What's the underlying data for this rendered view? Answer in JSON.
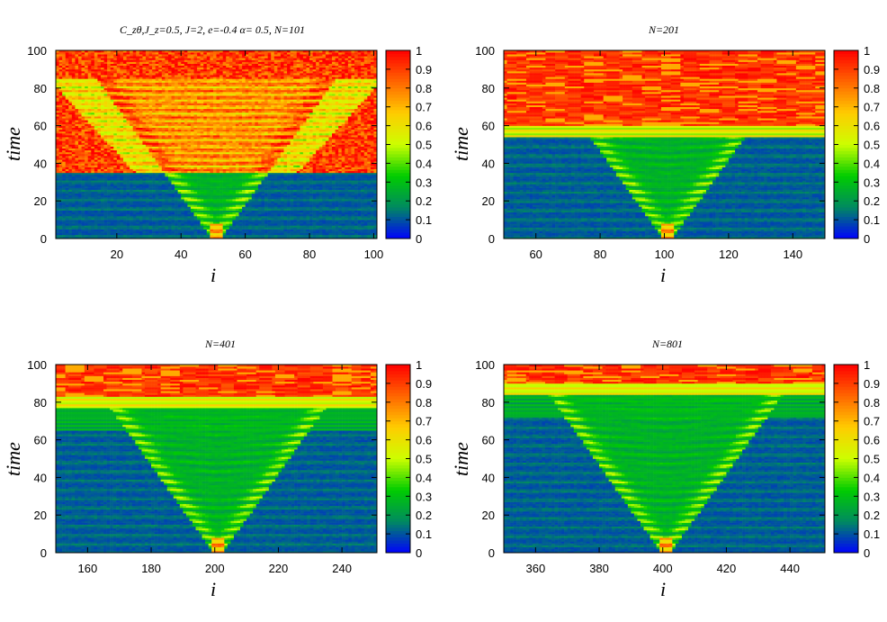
{
  "figure": {
    "colorbar_ticks": [
      "1",
      "0.9",
      "0.8",
      "0.7",
      "0.6",
      "0.5",
      "0.4",
      "0.3",
      "0.2",
      "0.1",
      "0"
    ],
    "colormap": [
      "#0000ff",
      "#008a60",
      "#00cc00",
      "#ccff00",
      "#ffcc00",
      "#ff6600",
      "#ff0000"
    ]
  },
  "chart_data": [
    {
      "type": "heatmap",
      "title": "C_zθ,J_z=0.5,  J=2, e=-0.4 α= 0.5, N=101",
      "xlabel": "i",
      "ylabel": "time",
      "xlim": [
        1,
        101
      ],
      "ylim": [
        0,
        100
      ],
      "xticks": [
        "20",
        "40",
        "60",
        "80",
        "100"
      ],
      "xtick_values": [
        20,
        40,
        60,
        80,
        100
      ],
      "yticks": [
        "0",
        "20",
        "40",
        "60",
        "80",
        "100"
      ],
      "center": 51,
      "clim": [
        0,
        1
      ],
      "features": {
        "chaos_onset_time": 35,
        "cone_spread": "light-cone from center"
      }
    },
    {
      "type": "heatmap",
      "title": "N=201",
      "xlabel": "i",
      "ylabel": "time",
      "xlim": [
        50,
        150
      ],
      "ylim": [
        0,
        100
      ],
      "xticks": [
        "60",
        "80",
        "100",
        "120",
        "140"
      ],
      "xtick_values": [
        60,
        80,
        100,
        120,
        140
      ],
      "yticks": [
        "0",
        "20",
        "40",
        "60",
        "80",
        "100"
      ],
      "center": 101,
      "clim": [
        0,
        1
      ],
      "features": {
        "saturation_time": 60
      }
    },
    {
      "type": "heatmap",
      "title": "N=401",
      "xlabel": "i",
      "ylabel": "time",
      "xlim": [
        150,
        251
      ],
      "ylim": [
        0,
        100
      ],
      "xticks": [
        "160",
        "180",
        "200",
        "220",
        "240"
      ],
      "xtick_values": [
        160,
        180,
        200,
        220,
        240
      ],
      "yticks": [
        "0",
        "20",
        "40",
        "60",
        "80",
        "100"
      ],
      "center": 201,
      "clim": [
        0,
        1
      ],
      "features": {
        "saturation_time": 83
      }
    },
    {
      "type": "heatmap",
      "title": "N=801",
      "xlabel": "i",
      "ylabel": "time",
      "xlim": [
        350,
        451
      ],
      "ylim": [
        0,
        100
      ],
      "xticks": [
        "360",
        "380",
        "400",
        "420",
        "440"
      ],
      "xtick_values": [
        360,
        380,
        400,
        420,
        440
      ],
      "yticks": [
        "0",
        "20",
        "40",
        "60",
        "80",
        "100"
      ],
      "center": 401,
      "clim": [
        0,
        1
      ],
      "features": {
        "saturation_time": 90
      }
    }
  ]
}
